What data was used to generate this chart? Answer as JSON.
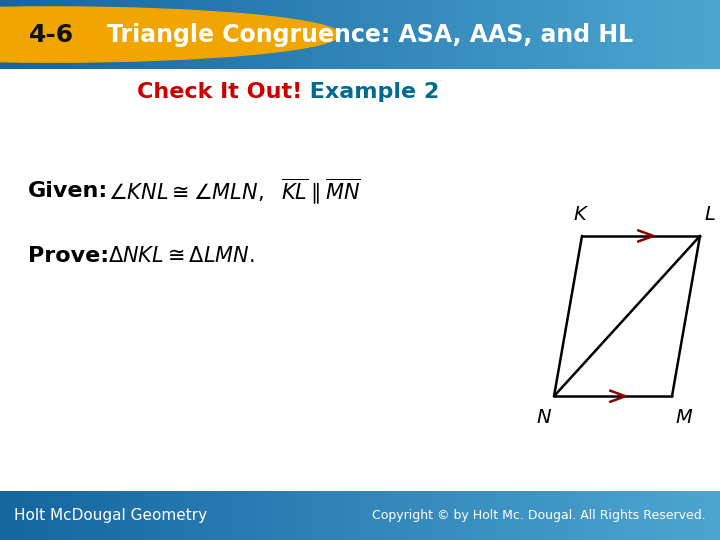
{
  "title_text": "Triangle Congruence: ASA, AAS, and HL",
  "lesson_num": "4-6",
  "subtitle_check": "Check It Out!",
  "subtitle_example": " Example 2",
  "given_label": "Given: ",
  "prove_label": "Prove: ",
  "header_bg_left": "#1565a0",
  "header_bg_right": "#4da6d0",
  "header_text_color": "#ffffff",
  "badge_bg": "#f0a500",
  "badge_text": "4-6",
  "body_bg": "#ffffff",
  "footer_bg": "#2486c8",
  "footer_left": "Holt McDougal Geometry",
  "footer_right": "Copyright © by Holt Mc. Dougal. All Rights Reserved.",
  "diagram_color": "#000000",
  "arrow_color": "#8b0000",
  "label_color": "#000000",
  "check_color": "#cc0000",
  "example_color": "#006b8f"
}
